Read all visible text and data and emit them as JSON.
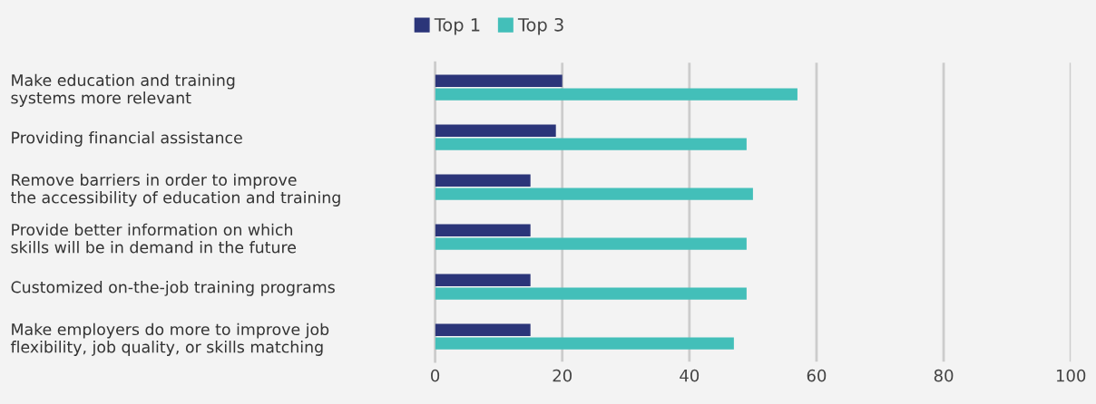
{
  "chart_data": {
    "type": "bar",
    "orientation": "horizontal",
    "categories": [
      "Make education and training\nsystems more relevant",
      "Providing financial assistance",
      "Remove barriers in order to improve\nthe accessibility of education and training",
      "Provide better information on which\nskills will be in demand in the future",
      "Customized on-the-job training programs",
      "Make employers do more to improve job\nflexibility, job quality, or skills matching"
    ],
    "series": [
      {
        "name": "Top 1",
        "color": "#2b3579",
        "values": [
          20,
          19,
          15,
          15,
          15,
          15
        ]
      },
      {
        "name": "Top 3",
        "color": "#43bfb9",
        "values": [
          57,
          49,
          50,
          49,
          49,
          47
        ]
      }
    ],
    "xlim": [
      0,
      100
    ],
    "xticks": [
      0,
      20,
      40,
      60,
      80,
      100
    ],
    "grid": "x",
    "legend": "top"
  }
}
